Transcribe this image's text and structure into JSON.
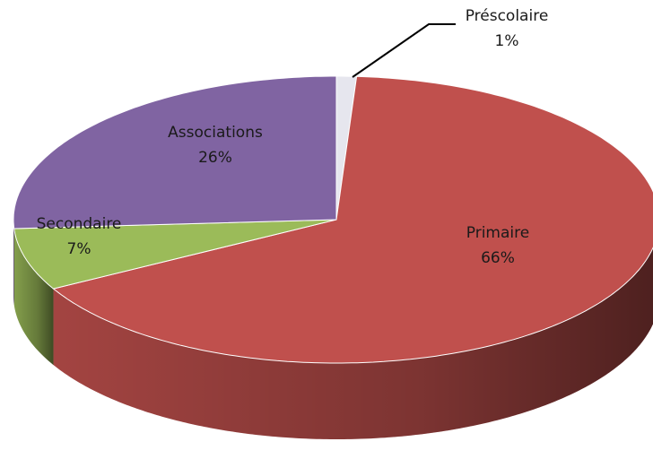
{
  "chart_data": {
    "type": "pie",
    "categories": [
      "Préscolaire",
      "Primaire",
      "Secondaire",
      "Associations"
    ],
    "values": [
      1,
      66,
      7,
      26
    ],
    "value_labels": [
      "1%",
      "66%",
      "7%",
      "26%"
    ],
    "colors": [
      "#e6e6ee",
      "#c0504d",
      "#9bbb59",
      "#8064a2"
    ]
  }
}
